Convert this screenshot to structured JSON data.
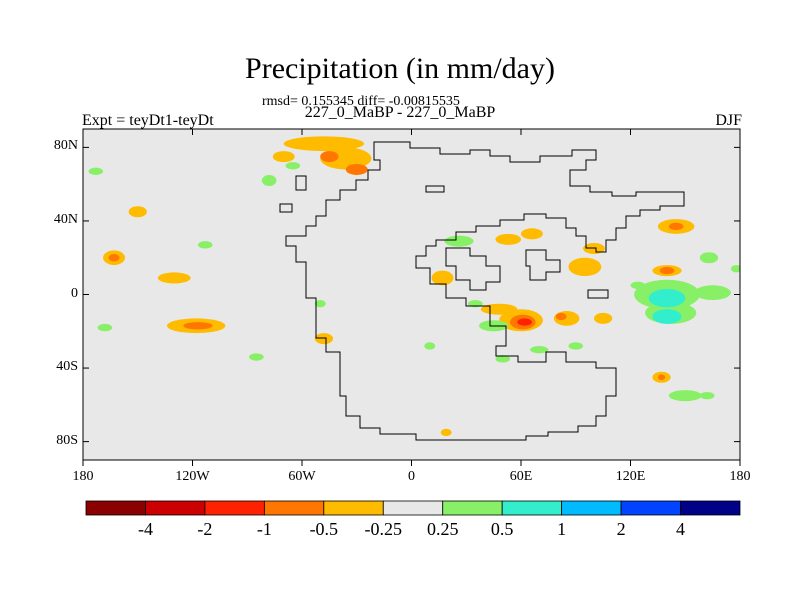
{
  "figure": {
    "title": "Precipitation (in mm/day)",
    "stats": "rmsd= 0.155345 diff= -0.00815535",
    "subtitle": "227_0_MaBP - 227_0_MaBP",
    "left_label": "Expt = teyDt1-teyDt",
    "right_label": "DJF"
  },
  "axes": {
    "lon_range": [
      -180,
      180
    ],
    "lat_range": [
      -90,
      90
    ],
    "x_ticks": [
      {
        "value": -180,
        "label": "180"
      },
      {
        "value": -120,
        "label": "120W"
      },
      {
        "value": -60,
        "label": "60W"
      },
      {
        "value": 0,
        "label": "0"
      },
      {
        "value": 60,
        "label": "60E"
      },
      {
        "value": 120,
        "label": "120E"
      },
      {
        "value": 180,
        "label": "180"
      }
    ],
    "y_ticks": [
      {
        "value": 80,
        "label": "80N"
      },
      {
        "value": 40,
        "label": "40N"
      },
      {
        "value": 0,
        "label": "0"
      },
      {
        "value": -40,
        "label": "40S"
      },
      {
        "value": -80,
        "label": "80S"
      }
    ]
  },
  "colorbar": {
    "colors": [
      "#8b0000",
      "#cc0000",
      "#ff2200",
      "#ff7700",
      "#ffbb00",
      "#e8e8e8",
      "#88f066",
      "#33eecc",
      "#00bbff",
      "#0044ff",
      "#000088"
    ],
    "labels": [
      "-4",
      "-2",
      "-1",
      "-0.5",
      "-0.25",
      "0.25",
      "0.5",
      "1",
      "2",
      "4"
    ]
  },
  "anomaly_regions": [
    {
      "lon": -48,
      "lat": 82,
      "rx": 22,
      "ry": 4,
      "level": "-0.25"
    },
    {
      "lon": -36,
      "lat": 74,
      "rx": 14,
      "ry": 6,
      "level": "-0.25"
    },
    {
      "lon": -45,
      "lat": 75,
      "rx": 5,
      "ry": 3,
      "level": "-0.5"
    },
    {
      "lon": -30,
      "lat": 68,
      "rx": 6,
      "ry": 3,
      "level": "-0.5"
    },
    {
      "lon": -70,
      "lat": 75,
      "rx": 6,
      "ry": 3,
      "level": "-0.25"
    },
    {
      "lon": -65,
      "lat": 70,
      "rx": 4,
      "ry": 2,
      "level": "0.25"
    },
    {
      "lon": -78,
      "lat": 62,
      "rx": 4,
      "ry": 3,
      "level": "0.25"
    },
    {
      "lon": -150,
      "lat": 45,
      "rx": 5,
      "ry": 3,
      "level": "-0.25"
    },
    {
      "lon": -163,
      "lat": 20,
      "rx": 6,
      "ry": 4,
      "level": "-0.25"
    },
    {
      "lon": -163,
      "lat": 20,
      "rx": 3,
      "ry": 2,
      "level": "-0.5"
    },
    {
      "lon": -130,
      "lat": 9,
      "rx": 9,
      "ry": 3,
      "level": "-0.25"
    },
    {
      "lon": -113,
      "lat": 27,
      "rx": 4,
      "ry": 2,
      "level": "0.25"
    },
    {
      "lon": -173,
      "lat": 67,
      "rx": 4,
      "ry": 2,
      "level": "0.25"
    },
    {
      "lon": -118,
      "lat": -17,
      "rx": 16,
      "ry": 4,
      "level": "-0.25"
    },
    {
      "lon": -117,
      "lat": -17,
      "rx": 8,
      "ry": 2,
      "level": "-0.5"
    },
    {
      "lon": -168,
      "lat": -18,
      "rx": 4,
      "ry": 2,
      "level": "0.25"
    },
    {
      "lon": -48,
      "lat": -24,
      "rx": 5,
      "ry": 3,
      "level": "-0.25"
    },
    {
      "lon": -85,
      "lat": -34,
      "rx": 4,
      "ry": 2,
      "level": "0.25"
    },
    {
      "lon": -50,
      "lat": -5,
      "rx": 3,
      "ry": 2,
      "level": "0.25"
    },
    {
      "lon": 10,
      "lat": -28,
      "rx": 3,
      "ry": 2,
      "level": "0.25"
    },
    {
      "lon": 17,
      "lat": 9,
      "rx": 6,
      "ry": 4,
      "level": "-0.25"
    },
    {
      "lon": 26,
      "lat": 29,
      "rx": 8,
      "ry": 3,
      "level": "0.25"
    },
    {
      "lon": 53,
      "lat": 30,
      "rx": 7,
      "ry": 3,
      "level": "-0.25"
    },
    {
      "lon": 66,
      "lat": 33,
      "rx": 6,
      "ry": 3,
      "level": "-0.25"
    },
    {
      "lon": 95,
      "lat": 15,
      "rx": 9,
      "ry": 5,
      "level": "-0.25"
    },
    {
      "lon": 100,
      "lat": 25,
      "rx": 6,
      "ry": 3,
      "level": "-0.25"
    },
    {
      "lon": 145,
      "lat": 37,
      "rx": 10,
      "ry": 4,
      "level": "-0.25"
    },
    {
      "lon": 145,
      "lat": 37,
      "rx": 4,
      "ry": 2,
      "level": "-0.5"
    },
    {
      "lon": 163,
      "lat": 20,
      "rx": 5,
      "ry": 3,
      "level": "0.25"
    },
    {
      "lon": 178,
      "lat": 14,
      "rx": 3,
      "ry": 2,
      "level": "0.25"
    },
    {
      "lon": 48,
      "lat": -8,
      "rx": 10,
      "ry": 3,
      "level": "-0.25"
    },
    {
      "lon": 60,
      "lat": -14,
      "rx": 12,
      "ry": 6,
      "level": "-0.25"
    },
    {
      "lon": 61,
      "lat": -15,
      "rx": 7,
      "ry": 4,
      "level": "-0.5"
    },
    {
      "lon": 62,
      "lat": -15,
      "rx": 4,
      "ry": 2,
      "level": "-1"
    },
    {
      "lon": 85,
      "lat": -13,
      "rx": 7,
      "ry": 4,
      "level": "-0.25"
    },
    {
      "lon": 82,
      "lat": -12,
      "rx": 3,
      "ry": 2,
      "level": "-0.5"
    },
    {
      "lon": 105,
      "lat": -13,
      "rx": 5,
      "ry": 3,
      "level": "-0.25"
    },
    {
      "lon": 45,
      "lat": -17,
      "rx": 8,
      "ry": 3,
      "level": "0.25"
    },
    {
      "lon": 50,
      "lat": -35,
      "rx": 4,
      "ry": 2,
      "level": "0.25"
    },
    {
      "lon": 70,
      "lat": -30,
      "rx": 5,
      "ry": 2,
      "level": "0.25"
    },
    {
      "lon": 90,
      "lat": -28,
      "rx": 4,
      "ry": 2,
      "level": "0.25"
    },
    {
      "lon": 35,
      "lat": -5,
      "rx": 4,
      "ry": 2,
      "level": "0.25"
    },
    {
      "lon": 140,
      "lat": 0,
      "rx": 18,
      "ry": 8,
      "level": "0.25"
    },
    {
      "lon": 142,
      "lat": -10,
      "rx": 14,
      "ry": 6,
      "level": "0.25"
    },
    {
      "lon": 140,
      "lat": -2,
      "rx": 10,
      "ry": 5,
      "level": "0.5"
    },
    {
      "lon": 140,
      "lat": -12,
      "rx": 8,
      "ry": 4,
      "level": "0.5"
    },
    {
      "lon": 165,
      "lat": 1,
      "rx": 10,
      "ry": 4,
      "level": "0.25"
    },
    {
      "lon": 140,
      "lat": 13,
      "rx": 8,
      "ry": 3,
      "level": "-0.25"
    },
    {
      "lon": 140,
      "lat": 13,
      "rx": 4,
      "ry": 2,
      "level": "-0.5"
    },
    {
      "lon": 124,
      "lat": 5,
      "rx": 4,
      "ry": 2,
      "level": "0.25"
    },
    {
      "lon": 137,
      "lat": -45,
      "rx": 5,
      "ry": 3,
      "level": "-0.25"
    },
    {
      "lon": 137,
      "lat": -45,
      "rx": 2,
      "ry": 1.5,
      "level": "-0.5"
    },
    {
      "lon": 150,
      "lat": -55,
      "rx": 9,
      "ry": 3,
      "level": "0.25"
    },
    {
      "lon": 162,
      "lat": -55,
      "rx": 4,
      "ry": 2,
      "level": "0.25"
    },
    {
      "lon": 19,
      "lat": -75,
      "rx": 3,
      "ry": 2,
      "level": "-0.25"
    }
  ]
}
